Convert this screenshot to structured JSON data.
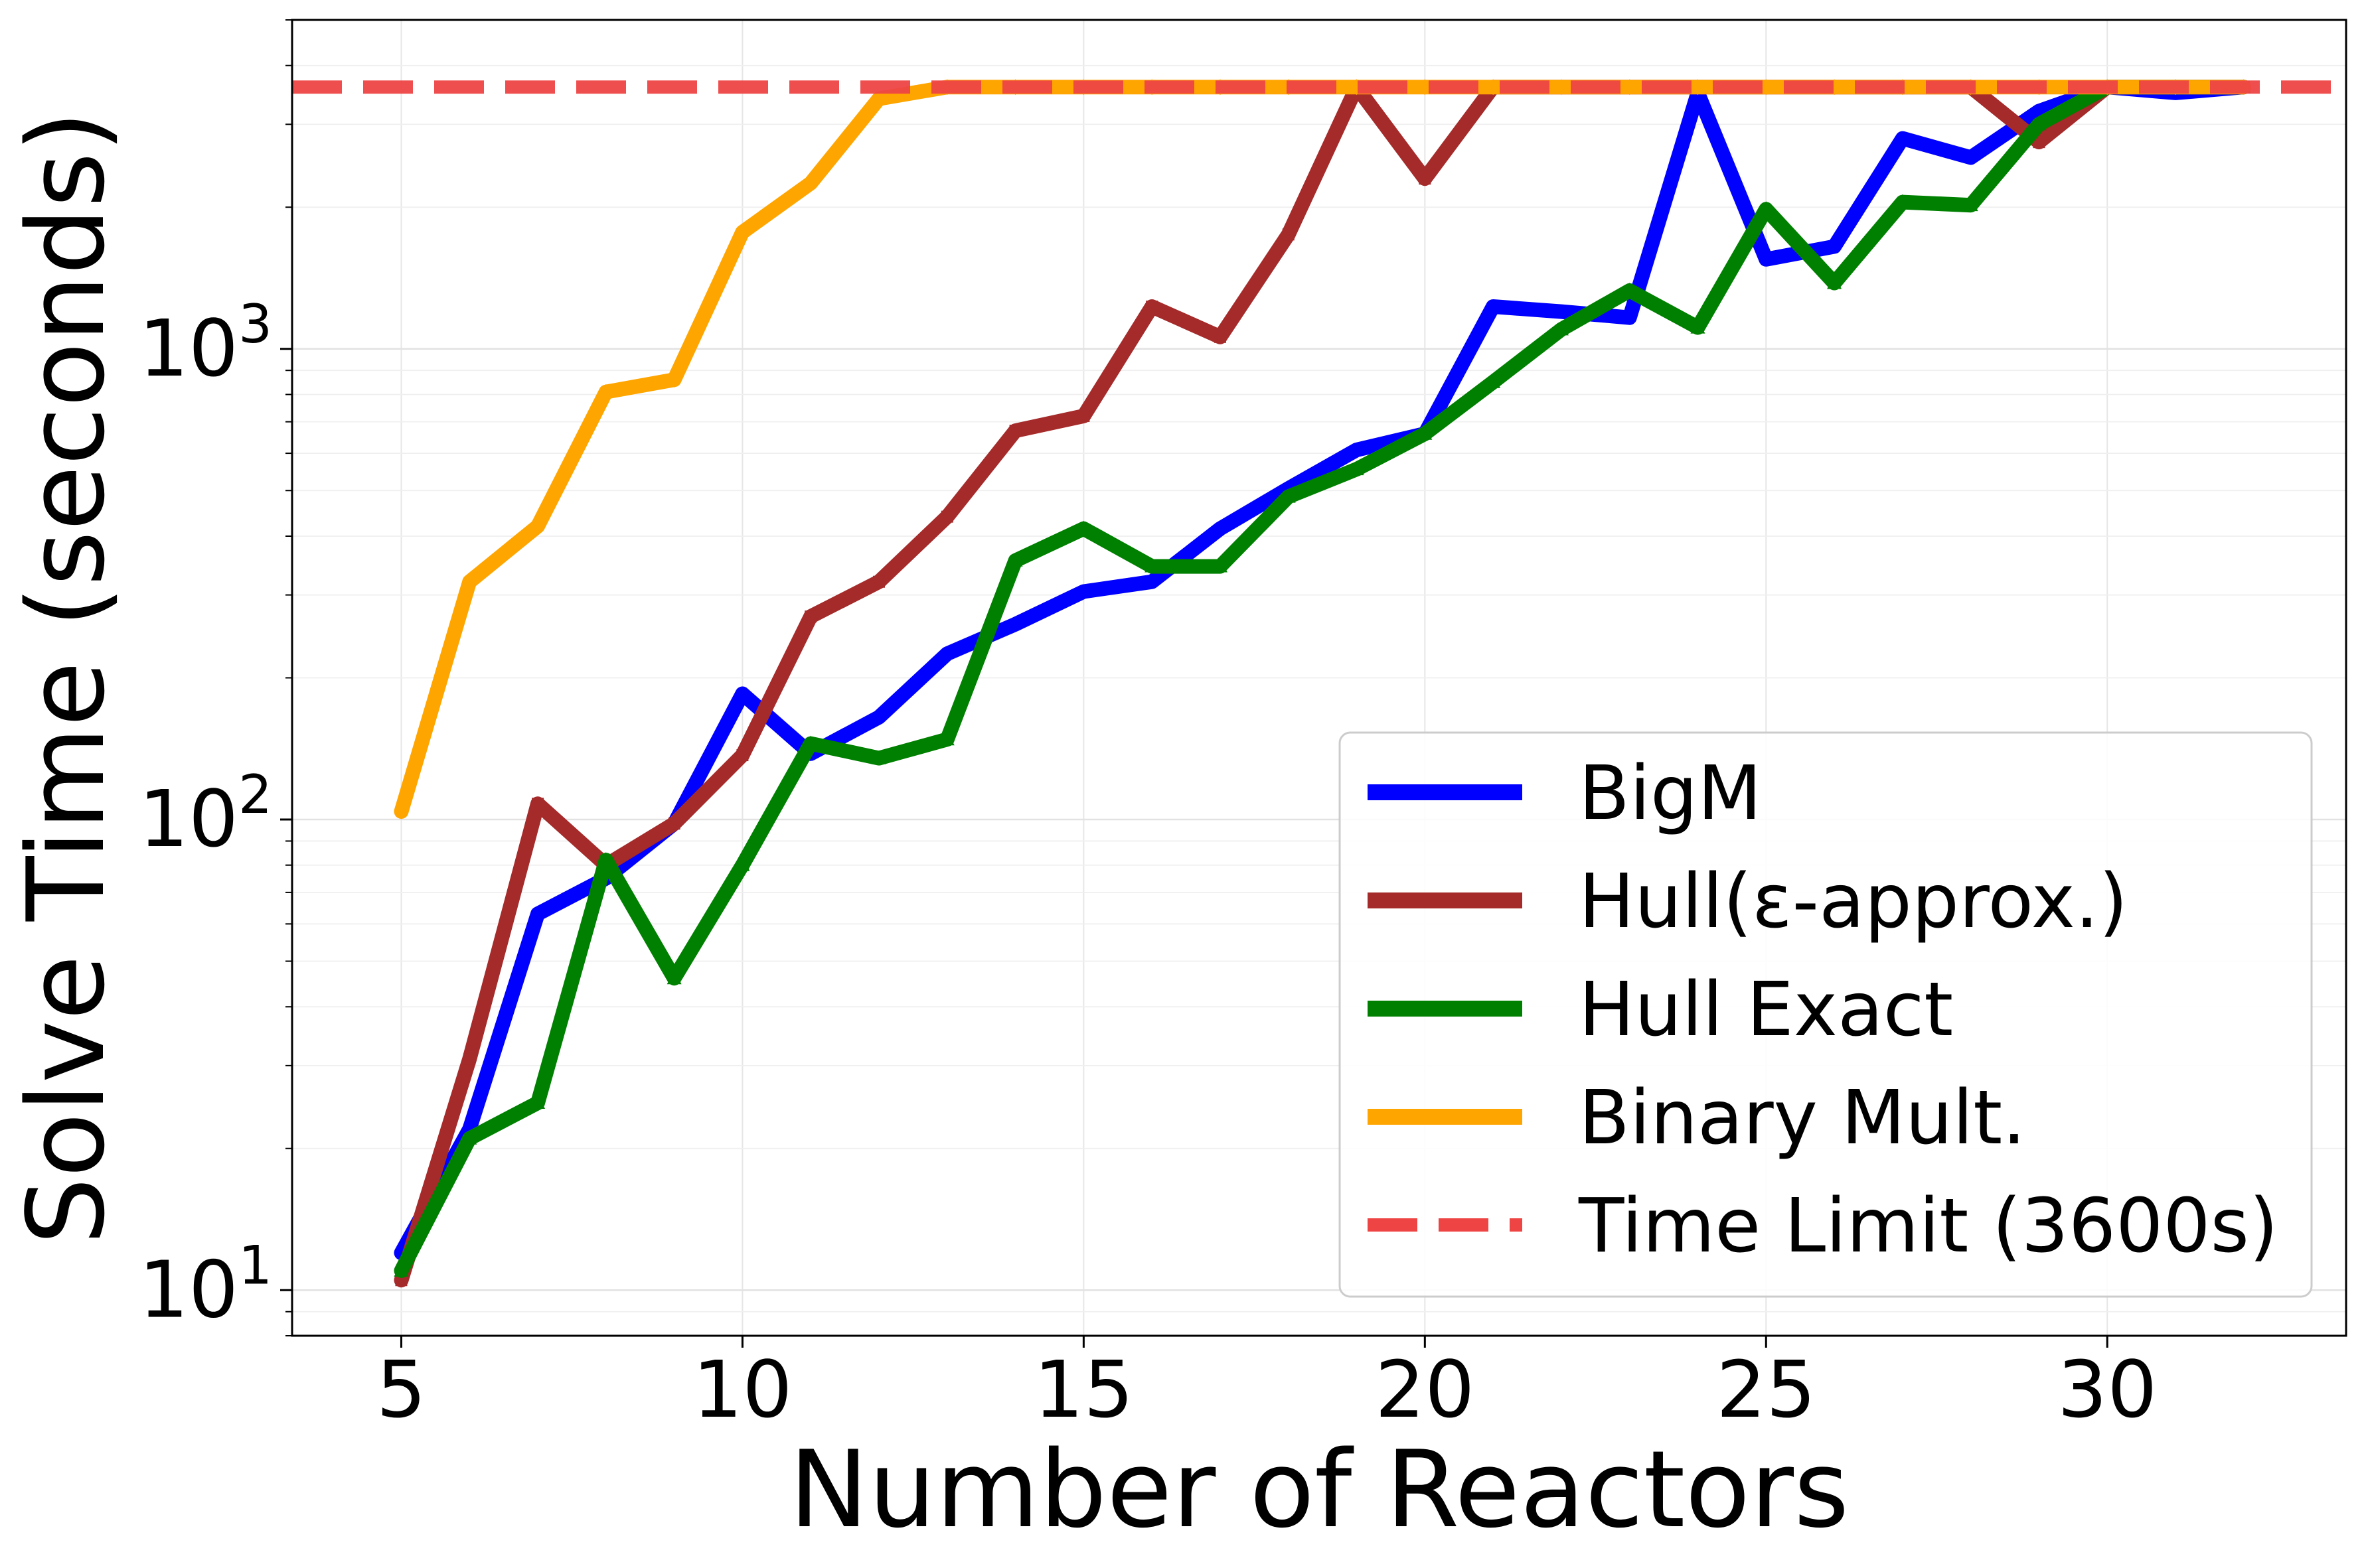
{
  "chart_data": {
    "type": "line",
    "title": "",
    "xlabel": "Number of Reactors",
    "ylabel": "Solve Time (seconds)",
    "xlim": [
      3.4,
      33.5
    ],
    "ylim": [
      8,
      5000
    ],
    "yscale": "log",
    "grid": true,
    "legend_position": "lower-right",
    "x_ticks": [
      5,
      10,
      15,
      20,
      25,
      30
    ],
    "x_tick_labels": [
      "5",
      "10",
      "15",
      "20",
      "25",
      "30"
    ],
    "y_ticks": [
      10,
      100,
      1000
    ],
    "y_tick_labels": [
      {
        "base": "10",
        "exp": "1"
      },
      {
        "base": "10",
        "exp": "2"
      },
      {
        "base": "10",
        "exp": "3"
      }
    ],
    "x": [
      5,
      6,
      7,
      8,
      9,
      10,
      11,
      12,
      13,
      14,
      15,
      16,
      17,
      18,
      19,
      20,
      21,
      22,
      23,
      24,
      25,
      26,
      27,
      28,
      29,
      30,
      31,
      32
    ],
    "series": [
      {
        "name": "BigM",
        "color": "#0000ff",
        "marker": "circle",
        "values": [
          12,
          22,
          63,
          75,
          98,
          185,
          138,
          165,
          225,
          260,
          305,
          320,
          415,
          505,
          610,
          660,
          1230,
          1200,
          1165,
          3500,
          1550,
          1650,
          2800,
          2550,
          3200,
          3600,
          3500,
          3600
        ]
      },
      {
        "name": "Hull(ε-approx.)",
        "color": "#a52a2a",
        "marker": "square",
        "values": [
          10.5,
          31,
          108,
          80,
          98,
          137,
          270,
          320,
          440,
          670,
          720,
          1230,
          1060,
          1750,
          3600,
          2300,
          3600,
          3600,
          3600,
          3600,
          3600,
          3600,
          3600,
          3600,
          2750,
          3600,
          3600,
          3600
        ]
      },
      {
        "name": "Hull Exact",
        "color": "#008000",
        "marker": "triangle",
        "values": [
          11,
          21,
          25,
          82,
          46,
          80,
          145,
          135,
          148,
          355,
          415,
          345,
          345,
          485,
          555,
          660,
          850,
          1100,
          1330,
          1110,
          1980,
          1380,
          2050,
          2020,
          3000,
          3600,
          3600,
          3600
        ]
      },
      {
        "name": "Binary Mult.",
        "color": "#ffa500",
        "marker": "diamond",
        "values": [
          104,
          320,
          420,
          810,
          860,
          1770,
          2250,
          3400,
          3600,
          3600,
          3600,
          3600,
          3600,
          3600,
          3600,
          3600,
          3600,
          3600,
          3600,
          3600,
          3600,
          3600,
          3600,
          3600,
          3600,
          3600,
          3600,
          3600
        ]
      }
    ],
    "reference_lines": [
      {
        "name": "Time Limit (3600s)",
        "y": 3600,
        "color": "#ee4444",
        "style": "dashed"
      }
    ]
  }
}
